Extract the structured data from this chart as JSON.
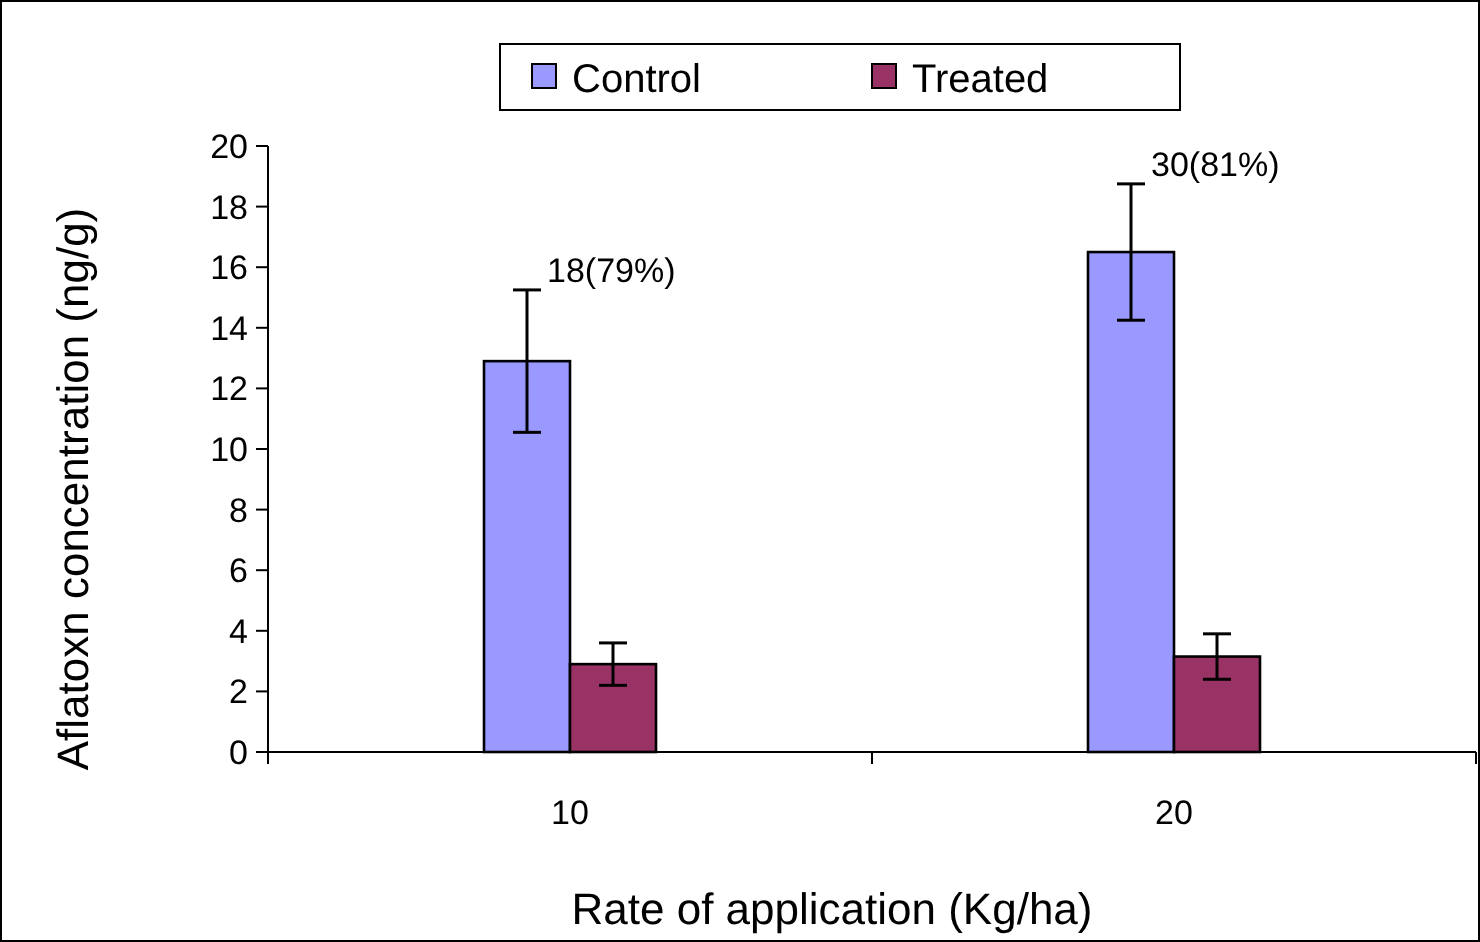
{
  "chart_data": {
    "type": "bar",
    "xlabel": "Rate of application (Kg/ha)",
    "ylabel": "Aflatoxn concentration (ng/g)",
    "categories": [
      "10",
      "20"
    ],
    "series": [
      {
        "name": "Control",
        "color": "#9999ff",
        "values": [
          12.9,
          16.5
        ],
        "errors": [
          2.35,
          2.25
        ]
      },
      {
        "name": "Treated",
        "color": "#993366",
        "values": [
          2.9,
          3.15
        ],
        "errors": [
          0.7,
          0.75
        ]
      }
    ],
    "ylim": [
      0,
      20
    ],
    "yticks": [
      0,
      2,
      4,
      6,
      8,
      10,
      12,
      14,
      16,
      18,
      20
    ],
    "grid": false,
    "legend": "top",
    "annotations": [
      "18(79%)",
      "30(81%)"
    ]
  }
}
